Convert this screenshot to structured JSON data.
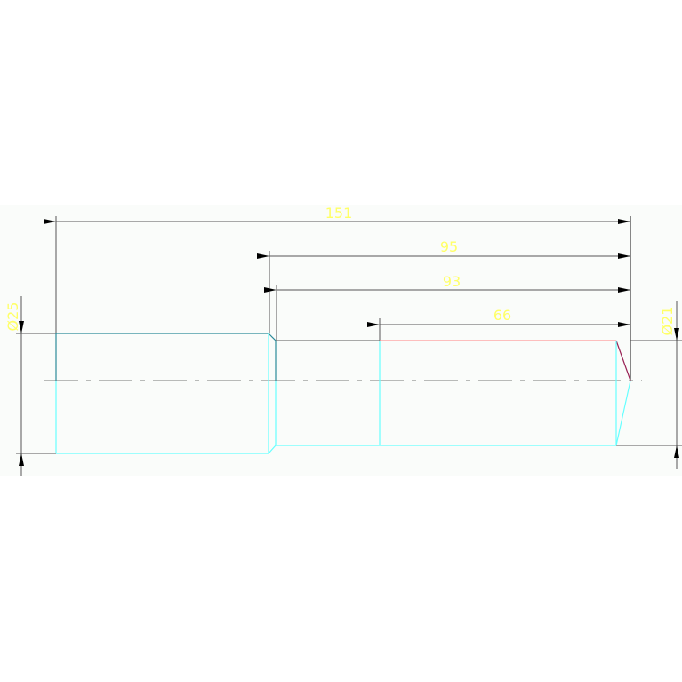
{
  "drawing": {
    "dimensions": {
      "overall_length": "151",
      "length_95": "95",
      "length_93": "93",
      "length_66": "66",
      "diameter_left": "Ø25",
      "diameter_right": "Ø21"
    },
    "colors": {
      "background": "#fafcfa",
      "dimension_line": "#555555",
      "dimension_text": "#ffff66",
      "outline_cyan": "#66ffff",
      "outline_teal": "#2a8a99",
      "outline_pink": "#ff9999",
      "chamfer_purple": "#992255",
      "centerline": "#777777"
    }
  }
}
